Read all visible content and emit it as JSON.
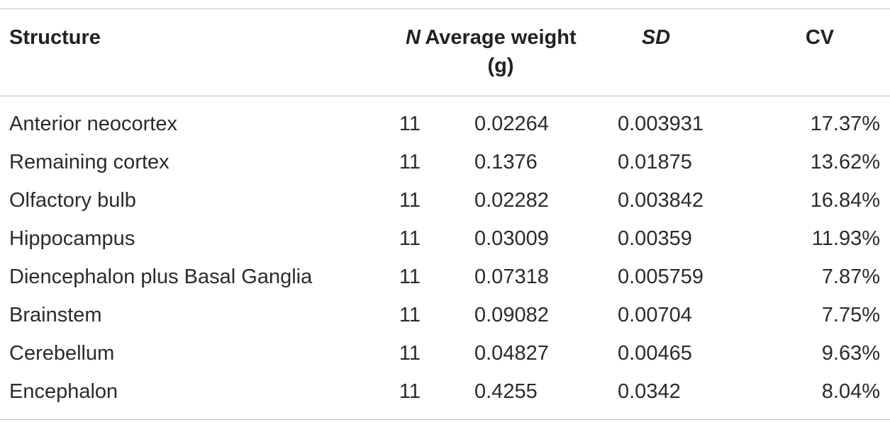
{
  "table": {
    "headers": {
      "structure": "Structure",
      "n": "N",
      "average_weight": "Average weight (g)",
      "sd": "SD",
      "cv": "CV"
    },
    "rows": [
      {
        "structure": "Anterior neocortex",
        "n": "11",
        "average_weight": "0.02264",
        "sd": "0.003931",
        "cv": "17.37%"
      },
      {
        "structure": "Remaining cortex",
        "n": "11",
        "average_weight": "0.1376",
        "sd": "0.01875",
        "cv": "13.62%"
      },
      {
        "structure": "Olfactory bulb",
        "n": "11",
        "average_weight": "0.02282",
        "sd": "0.003842",
        "cv": "16.84%"
      },
      {
        "structure": "Hippocampus",
        "n": "11",
        "average_weight": "0.03009",
        "sd": "0.00359",
        "cv": "11.93%"
      },
      {
        "structure": "Diencephalon plus Basal Ganglia",
        "n": "11",
        "average_weight": "0.07318",
        "sd": "0.005759",
        "cv": "7.87%"
      },
      {
        "structure": "Brainstem",
        "n": "11",
        "average_weight": "0.09082",
        "sd": "0.00704",
        "cv": "7.75%"
      },
      {
        "structure": "Cerebellum",
        "n": "11",
        "average_weight": "0.04827",
        "sd": "0.00465",
        "cv": "9.63%"
      },
      {
        "structure": "Encephalon",
        "n": "11",
        "average_weight": "0.4255",
        "sd": "0.0342",
        "cv": "8.04%"
      }
    ]
  }
}
